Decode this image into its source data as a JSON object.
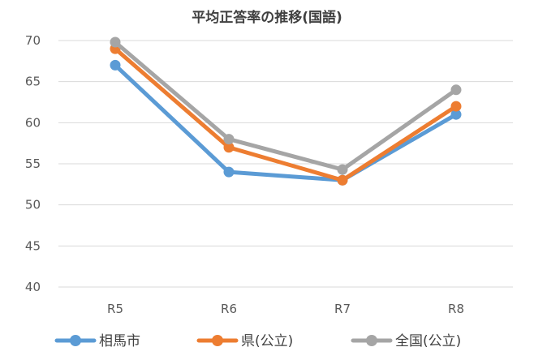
{
  "chart_data": {
    "type": "line",
    "title": "平均正答率の推移(国語)",
    "categories": [
      "R5",
      "R6",
      "R7",
      "R8"
    ],
    "ylim": [
      40,
      70
    ],
    "yticks": [
      40,
      45,
      50,
      55,
      60,
      65,
      70
    ],
    "grid": true,
    "legend_position": "bottom",
    "series": [
      {
        "name": "相馬市",
        "color": "#5B9BD5",
        "values": [
          67,
          54,
          53,
          61
        ]
      },
      {
        "name": "県(公立)",
        "color": "#ED7D31",
        "values": [
          69,
          57,
          53,
          62
        ]
      },
      {
        "name": "全国(公立)",
        "color": "#A5A5A5",
        "values": [
          69.8,
          58,
          54.3,
          64
        ]
      }
    ]
  }
}
